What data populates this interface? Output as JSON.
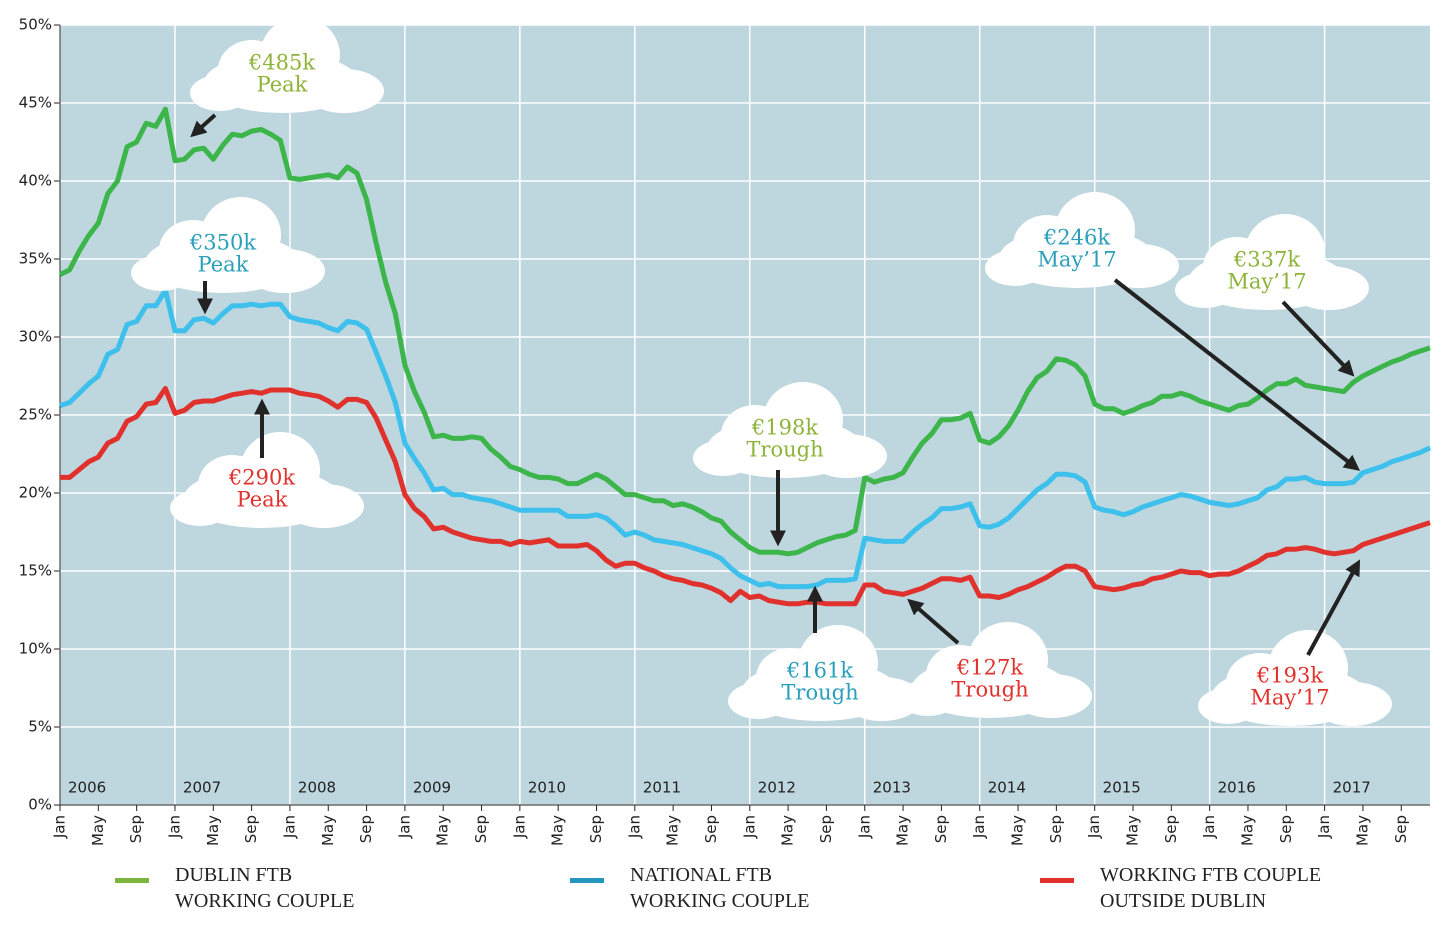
{
  "chart_data": {
    "type": "line",
    "categories": [
      "Jan",
      null,
      null,
      null,
      "May",
      null,
      null,
      null,
      "Sep",
      null,
      null,
      null,
      "Jan",
      null,
      null,
      null,
      "May",
      null,
      null,
      null,
      "Sep",
      null,
      null,
      null,
      "Jan",
      null,
      null,
      null,
      "May",
      null,
      null,
      null,
      "Sep",
      null,
      null,
      null,
      "Jan",
      null,
      null,
      null,
      "May",
      null,
      null,
      null,
      "Sep",
      null,
      null,
      null,
      "Jan",
      null,
      null,
      null,
      "May",
      null,
      null,
      null,
      "Sep",
      null,
      null,
      null,
      "Jan",
      null,
      null,
      null,
      "May",
      null,
      null,
      null,
      "Sep",
      null,
      null,
      null,
      "Jan",
      null,
      null,
      null,
      "May",
      null,
      null,
      null,
      "Sep",
      null,
      null,
      null,
      "Jan",
      null,
      null,
      null,
      "May",
      null,
      null,
      null,
      "Sep",
      null,
      null,
      null,
      "Jan",
      null,
      null,
      null,
      "May",
      null,
      null,
      null,
      "Sep",
      null,
      null,
      null,
      "Jan",
      null,
      null,
      null,
      "May",
      null,
      null,
      null,
      "Sep",
      null,
      null,
      null,
      "Jan",
      null,
      null,
      null,
      "May",
      null,
      null,
      null,
      "Sep",
      null,
      null,
      null,
      "Jan",
      null,
      null,
      null,
      "May",
      null,
      null,
      null,
      "Sep",
      null,
      null,
      null
    ],
    "year_labels": [
      "2006",
      "2007",
      "2008",
      "2009",
      "2010",
      "2011",
      "2012",
      "2013",
      "2014",
      "2015",
      "2016",
      "2017"
    ],
    "ylim": [
      0,
      50
    ],
    "yticks": [
      {
        "value": 0,
        "label": "0%"
      },
      {
        "value": 5,
        "label": "5%"
      },
      {
        "value": 10,
        "label": "10%"
      },
      {
        "value": 15,
        "label": "15%"
      },
      {
        "value": 20,
        "label": "20%"
      },
      {
        "value": 25,
        "label": "25%"
      },
      {
        "value": 30,
        "label": "30%"
      },
      {
        "value": 35,
        "label": "35%"
      },
      {
        "value": 40,
        "label": "40%"
      },
      {
        "value": 45,
        "label": "45%"
      },
      {
        "value": 50,
        "label": "50%"
      }
    ],
    "grid": true,
    "series": [
      {
        "name": "DUBLIN FTB WORKING COUPLE",
        "color": "#3cb54a",
        "legend_color": "#7db53e",
        "values": [
          34,
          34.3,
          35.5,
          36.5,
          37.3,
          39.2,
          40,
          42.2,
          42.5,
          43.7,
          43.5,
          44.6,
          41.3,
          41.4,
          42,
          42.1,
          41.4,
          42.3,
          43,
          42.9,
          43.2,
          43.3,
          43,
          42.6,
          40.2,
          40.1,
          40.2,
          40.3,
          40.4,
          40.2,
          40.9,
          40.5,
          38.8,
          36,
          33.5,
          31.5,
          28.2,
          26.5,
          25.2,
          23.6,
          23.7,
          23.5,
          23.5,
          23.6,
          23.5,
          22.8,
          22.3,
          21.7,
          21.5,
          21.2,
          21,
          21,
          20.9,
          20.6,
          20.6,
          20.9,
          21.2,
          20.9,
          20.4,
          19.9,
          19.9,
          19.7,
          19.5,
          19.5,
          19.2,
          19.3,
          19.1,
          18.8,
          18.4,
          18.2,
          17.5,
          17,
          16.5,
          16.2,
          16.2,
          16.2,
          16.1,
          16.2,
          16.5,
          16.8,
          17,
          17.2,
          17.3,
          17.6,
          21,
          20.7,
          20.9,
          21,
          21.3,
          22.3,
          23.2,
          23.8,
          24.7,
          24.7,
          24.8,
          25.1,
          23.4,
          23.2,
          23.6,
          24.3,
          25.3,
          26.5,
          27.4,
          27.8,
          28.6,
          28.5,
          28.2,
          27.5,
          25.7,
          25.4,
          25.4,
          25.1,
          25.3,
          25.6,
          25.8,
          26.2,
          26.2,
          26.4,
          26.2,
          25.9,
          25.7,
          25.5,
          25.3,
          25.6,
          25.7,
          26.1,
          26.6,
          27,
          27,
          27.3,
          26.9,
          26.8,
          26.7,
          26.6,
          26.5,
          27.1,
          27.5,
          27.8,
          28.1,
          28.4,
          28.6,
          28.9,
          29.1,
          29.3
        ]
      },
      {
        "name": "NATIONAL FTB WORKING COUPLE",
        "color": "#3ec0ec",
        "legend_color": "#2596be",
        "values": [
          25.6,
          25.8,
          26.4,
          27,
          27.5,
          28.9,
          29.2,
          30.8,
          31,
          32,
          32,
          33,
          30.4,
          30.4,
          31.1,
          31.2,
          30.9,
          31.5,
          32,
          32,
          32.1,
          32,
          32.1,
          32.1,
          31.3,
          31.1,
          31,
          30.9,
          30.6,
          30.4,
          31,
          30.9,
          30.5,
          29,
          27.5,
          25.8,
          23.2,
          22.2,
          21.3,
          20.2,
          20.3,
          19.9,
          19.9,
          19.7,
          19.6,
          19.5,
          19.3,
          19.1,
          18.9,
          18.9,
          18.9,
          18.9,
          18.9,
          18.5,
          18.5,
          18.5,
          18.6,
          18.4,
          17.9,
          17.3,
          17.5,
          17.3,
          17,
          16.9,
          16.8,
          16.7,
          16.5,
          16.3,
          16.1,
          15.8,
          15.2,
          14.7,
          14.4,
          14.1,
          14.2,
          14,
          14,
          14,
          14,
          14.1,
          14.4,
          14.4,
          14.4,
          14.5,
          17.1,
          17,
          16.9,
          16.9,
          16.9,
          17.5,
          18,
          18.4,
          19,
          19,
          19.1,
          19.3,
          17.9,
          17.8,
          18,
          18.4,
          19,
          19.6,
          20.2,
          20.6,
          21.2,
          21.2,
          21.1,
          20.7,
          19.1,
          18.9,
          18.8,
          18.6,
          18.8,
          19.1,
          19.3,
          19.5,
          19.7,
          19.9,
          19.8,
          19.6,
          19.4,
          19.3,
          19.2,
          19.3,
          19.5,
          19.7,
          20.2,
          20.4,
          20.9,
          20.9,
          21,
          20.7,
          20.6,
          20.6,
          20.6,
          20.7,
          21.3,
          21.5,
          21.7,
          22,
          22.2,
          22.4,
          22.6,
          22.9
        ]
      },
      {
        "name": "WORKING FTB COUPLE OUTSIDE DUBLIN",
        "color": "#e0312d",
        "legend_color": "#e0312d",
        "values": [
          21,
          21,
          21.5,
          22,
          22.3,
          23.2,
          23.5,
          24.6,
          24.9,
          25.7,
          25.8,
          26.7,
          25.1,
          25.3,
          25.8,
          25.9,
          25.9,
          26.1,
          26.3,
          26.4,
          26.5,
          26.4,
          26.6,
          26.6,
          26.6,
          26.4,
          26.3,
          26.2,
          25.9,
          25.5,
          26,
          26,
          25.8,
          24.8,
          23.4,
          22,
          19.9,
          19,
          18.5,
          17.7,
          17.8,
          17.5,
          17.3,
          17.1,
          17,
          16.9,
          16.9,
          16.7,
          16.9,
          16.8,
          16.9,
          17,
          16.6,
          16.6,
          16.6,
          16.7,
          16.3,
          15.7,
          15.3,
          15.5,
          15.5,
          15.2,
          15,
          14.7,
          14.5,
          14.4,
          14.2,
          14.1,
          13.9,
          13.6,
          13.1,
          13.7,
          13.3,
          13.4,
          13.1,
          13,
          12.9,
          12.9,
          13,
          13,
          12.9,
          12.9,
          12.9,
          12.9,
          14.1,
          14.1,
          13.7,
          13.6,
          13.5,
          13.7,
          13.9,
          14.2,
          14.5,
          14.5,
          14.4,
          14.6,
          13.4,
          13.4,
          13.3,
          13.5,
          13.8,
          14,
          14.3,
          14.6,
          15,
          15.3,
          15.3,
          15,
          14,
          13.9,
          13.8,
          13.9,
          14.1,
          14.2,
          14.5,
          14.6,
          14.8,
          15,
          14.9,
          14.9,
          14.7,
          14.8,
          14.8,
          15,
          15.3,
          15.6,
          16,
          16.1,
          16.4,
          16.4,
          16.5,
          16.4,
          16.2,
          16.1,
          16.2,
          16.3,
          16.7,
          16.9,
          17.1,
          17.3,
          17.5,
          17.7,
          17.9,
          18.1
        ]
      }
    ],
    "annotations": [
      {
        "lines": [
          "€485k",
          "Peak"
        ],
        "color": "#8db33a"
      },
      {
        "lines": [
          "€350k",
          "Peak"
        ],
        "color": "#2a9fbb"
      },
      {
        "lines": [
          "€290k",
          "Peak"
        ],
        "color": "#e0312d"
      },
      {
        "lines": [
          "€198k",
          "Trough"
        ],
        "color": "#8db33a"
      },
      {
        "lines": [
          "€161k",
          "Trough"
        ],
        "color": "#2a9fbb"
      },
      {
        "lines": [
          "€127k",
          "Trough"
        ],
        "color": "#e0312d"
      },
      {
        "lines": [
          "€246k",
          "May’17"
        ],
        "color": "#2a9fbb"
      },
      {
        "lines": [
          "€337k",
          "May’17"
        ],
        "color": "#8db33a"
      },
      {
        "lines": [
          "€193k",
          "May’17"
        ],
        "color": "#e0312d"
      }
    ]
  }
}
